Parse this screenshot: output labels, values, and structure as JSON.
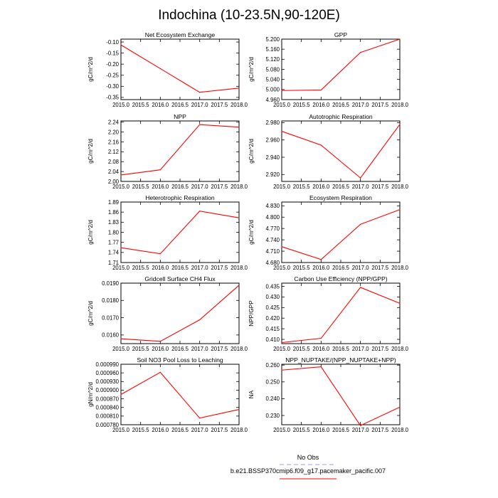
{
  "title": "Indochina (10-23.5N,90-120E)",
  "colors": {
    "model": "#ff0000",
    "obs": "#9999ff"
  },
  "legend": {
    "obs_label": "No Obs",
    "model_label": "b.e21.BSSP370cmip6.f09_g17.pacemaker_pacific.007"
  },
  "chart_data": [
    {
      "type": "line",
      "title": "Net Ecosystem Exchange",
      "ylabel": "gC/m^2/d",
      "x": [
        2015,
        2016,
        2017,
        2018
      ],
      "values": [
        -0.113,
        -0.22,
        -0.327,
        -0.308
      ],
      "xlim": [
        2015,
        2018
      ],
      "ylim": [
        -0.36,
        -0.087
      ],
      "xticks": [
        "2015.0",
        "2015.5",
        "2016.0",
        "2016.5",
        "2017.0",
        "2017.5",
        "2018.0"
      ],
      "yticks": [
        -0.1,
        -0.15,
        -0.2,
        -0.25,
        -0.3,
        -0.35
      ],
      "ytick_labels": [
        "-0.10",
        "-0.15",
        "-0.20",
        "-0.25",
        "-0.30",
        "-0.35"
      ]
    },
    {
      "type": "line",
      "title": "GPP",
      "ylabel": "gC/m^2/d",
      "x": [
        2015,
        2016,
        2017,
        2018
      ],
      "values": [
        4.996,
        4.998,
        5.147,
        5.2
      ],
      "xlim": [
        2015,
        2018
      ],
      "ylim": [
        4.96,
        5.2
      ],
      "xticks": [
        "2015.0",
        "2015.5",
        "2016.0",
        "2016.5",
        "2017.0",
        "2017.5",
        "2018.0"
      ],
      "yticks": [
        5.2,
        5.16,
        5.12,
        5.08,
        5.04,
        5.0,
        4.96
      ],
      "ytick_labels": [
        "5.200",
        "5.160",
        "5.120",
        "5.080",
        "5.040",
        "5.000",
        "4.960"
      ]
    },
    {
      "type": "line",
      "title": "NPP",
      "ylabel": "gC/m^2/d",
      "x": [
        2015,
        2016,
        2017,
        2018
      ],
      "values": [
        2.026,
        2.047,
        2.23,
        2.22
      ],
      "xlim": [
        2015,
        2018
      ],
      "ylim": [
        2.0,
        2.245
      ],
      "xticks": [
        "2015.0",
        "2015.5",
        "2016.0",
        "2016.5",
        "2017.0",
        "2017.5",
        "2018.0"
      ],
      "yticks": [
        2.24,
        2.2,
        2.16,
        2.12,
        2.08,
        2.04,
        2.0
      ],
      "ytick_labels": [
        "2.24",
        "2.20",
        "2.16",
        "2.12",
        "2.08",
        "2.04",
        "2.00"
      ]
    },
    {
      "type": "line",
      "title": "Autotrophic Respiration",
      "ylabel": "gC/m^2/d",
      "x": [
        2015,
        2016,
        2017,
        2018
      ],
      "values": [
        2.97,
        2.954,
        2.916,
        2.978
      ],
      "xlim": [
        2015,
        2018
      ],
      "ylim": [
        2.912,
        2.982
      ],
      "xticks": [
        "2015.0",
        "2015.5",
        "2016.0",
        "2016.5",
        "2017.0",
        "2017.5",
        "2018.0"
      ],
      "yticks": [
        2.98,
        2.96,
        2.94,
        2.92
      ],
      "ytick_labels": [
        "2.980",
        "2.960",
        "2.940",
        "2.920"
      ]
    },
    {
      "type": "line",
      "title": "Heterotrophic Respiration",
      "ylabel": "gC/m^2/d",
      "x": [
        2015,
        2016,
        2017,
        2018
      ],
      "values": [
        1.754,
        1.736,
        1.863,
        1.843
      ],
      "xlim": [
        2015,
        2018
      ],
      "ylim": [
        1.71,
        1.89
      ],
      "xticks": [
        "2015.0",
        "2015.5",
        "2016.0",
        "2016.5",
        "2017.0",
        "2017.5",
        "2018.0"
      ],
      "yticks": [
        1.89,
        1.86,
        1.83,
        1.8,
        1.77,
        1.74,
        1.71
      ],
      "ytick_labels": [
        "1.89",
        "1.86",
        "1.83",
        "1.80",
        "1.77",
        "1.74",
        "1.71"
      ]
    },
    {
      "type": "line",
      "title": "Ecosystem Respiration",
      "ylabel": "gC/m^2/d",
      "x": [
        2015,
        2016,
        2017,
        2018
      ],
      "values": [
        4.722,
        4.688,
        4.781,
        4.82
      ],
      "xlim": [
        2015,
        2018
      ],
      "ylim": [
        4.68,
        4.84
      ],
      "xticks": [
        "2015.0",
        "2015.5",
        "2016.0",
        "2016.5",
        "2017.0",
        "2017.5",
        "2018.0"
      ],
      "yticks": [
        4.83,
        4.8,
        4.77,
        4.74,
        4.71,
        4.68
      ],
      "ytick_labels": [
        "4.830",
        "4.800",
        "4.770",
        "4.740",
        "4.710",
        "4.680"
      ]
    },
    {
      "type": "line",
      "title": "Gridcell Surface CH4 Flux",
      "ylabel": "gC/m^2/d",
      "x": [
        2015,
        2016,
        2017,
        2018
      ],
      "values": [
        0.01578,
        0.01563,
        0.01688,
        0.01888
      ],
      "xlim": [
        2015,
        2018
      ],
      "ylim": [
        0.0155,
        0.019
      ],
      "xticks": [
        "2015.0",
        "2015.5",
        "2016.0",
        "2016.5",
        "2017.0",
        "2017.5",
        "2018.0"
      ],
      "yticks": [
        0.019,
        0.018,
        0.017,
        0.016
      ],
      "ytick_labels": [
        "0.0190",
        "0.0180",
        "0.0170",
        "0.0160"
      ]
    },
    {
      "type": "line",
      "title": "Carbon Use Efficiency (NPP/GPP)",
      "ylabel": "NPP/GPP",
      "x": [
        2015,
        2016,
        2017,
        2018
      ],
      "values": [
        0.4085,
        0.4105,
        0.4345,
        0.427
      ],
      "xlim": [
        2015,
        2018
      ],
      "ylim": [
        0.408,
        0.4365
      ],
      "xticks": [
        "2015.0",
        "2015.5",
        "2016.0",
        "2016.5",
        "2017.0",
        "2017.5",
        "2018.0"
      ],
      "yticks": [
        0.435,
        0.43,
        0.425,
        0.42,
        0.415,
        0.41
      ],
      "ytick_labels": [
        "0.435",
        "0.430",
        "0.425",
        "0.420",
        "0.415",
        "0.410"
      ]
    },
    {
      "type": "line",
      "title": "Soil NO3 Pool Loss to Leaching",
      "ylabel": "gN/m^2/d",
      "x": [
        2015,
        2016,
        2017,
        2018
      ],
      "values": [
        0.000885,
        0.000962,
        0.000803,
        0.000833
      ],
      "xlim": [
        2015,
        2018
      ],
      "ylim": [
        0.00078,
        0.00099
      ],
      "xticks": [
        "2015.0",
        "2015.5",
        "2016.0",
        "2016.5",
        "2017.0",
        "2017.5",
        "2018.0"
      ],
      "yticks": [
        0.00099,
        0.00096,
        0.00093,
        0.0009,
        0.00087,
        0.00084,
        0.00081,
        0.00078
      ],
      "ytick_labels": [
        "0.000990",
        "0.000960",
        "0.000930",
        "0.000900",
        "0.000870",
        "0.000840",
        "0.000810",
        "0.000780"
      ]
    },
    {
      "type": "line",
      "title": "NPP_NUPTAKE/(NPP_NUPTAKE+NPP)",
      "ylabel": "NA",
      "x": [
        2015,
        2016,
        2017,
        2018
      ],
      "values": [
        0.257,
        0.259,
        0.224,
        0.235
      ],
      "xlim": [
        2015,
        2018
      ],
      "ylim": [
        0.2245,
        0.2605
      ],
      "xticks": [
        "2015.0",
        "2015.5",
        "2016.0",
        "2016.5",
        "2017.0",
        "2017.5",
        "2018.0"
      ],
      "yticks": [
        0.26,
        0.25,
        0.24,
        0.23
      ],
      "ytick_labels": [
        "0.260",
        "0.250",
        "0.240",
        "0.230"
      ]
    }
  ]
}
